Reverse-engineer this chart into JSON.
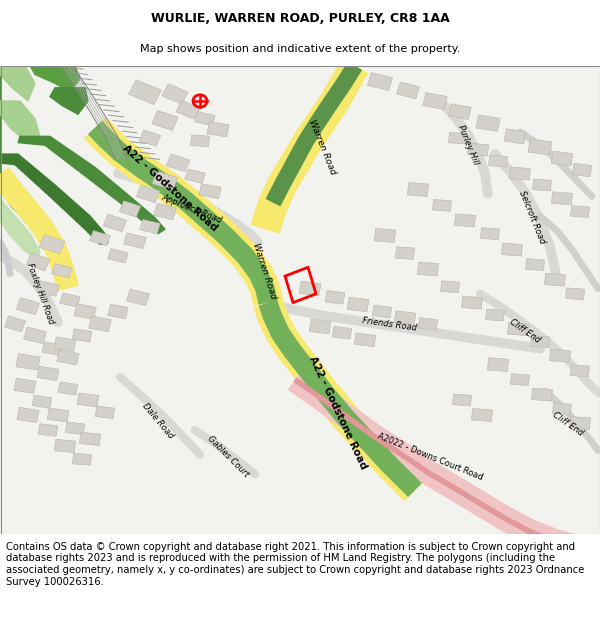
{
  "title": "WURLIE, WARREN ROAD, PURLEY, CR8 1AA",
  "subtitle": "Map shows position and indicative extent of the property.",
  "footer": "Contains OS data © Crown copyright and database right 2021. This information is subject to Crown copyright and database rights 2023 and is reproduced with the permission of HM Land Registry. The polygons (including the associated geometry, namely x, y co-ordinates) are subject to Crown copyright and database rights 2023 Ordnance Survey 100026316.",
  "title_fontsize": 9,
  "subtitle_fontsize": 8,
  "footer_fontsize": 7.2,
  "map_bg": "#f2f2ee",
  "road_yellow": "#f7e96e",
  "road_yellow_edge": "#e8c800",
  "road_green_dark": "#5b9349",
  "road_green_light": "#8cc872",
  "road_green_mid": "#72b05a",
  "road_pink": "#f0c4c4",
  "road_gray": "#c8c8c8",
  "building_color": "#d4d0ca",
  "building_outline": "#b8b4ae"
}
